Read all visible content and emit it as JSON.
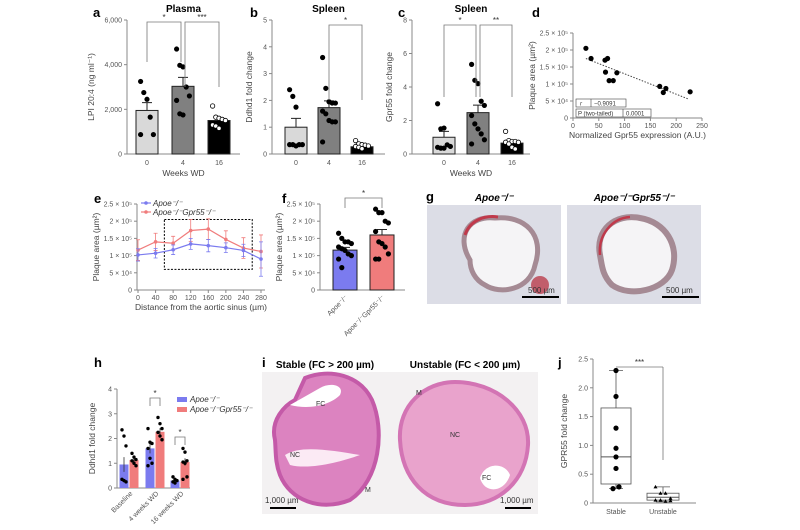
{
  "panel_labels": [
    "a",
    "b",
    "c",
    "d",
    "e",
    "f",
    "g",
    "h",
    "i",
    "j"
  ],
  "colors": {
    "apoe": "#7b7bef",
    "gpr55": "#f07c7c",
    "bar0": "#d9d9d9",
    "bar4": "#808080",
    "bar16": "#000000"
  },
  "chart_data": [
    {
      "type": "bar",
      "title": "Plasma",
      "ylabel": "LPI 20:4 (ng ml⁻¹)",
      "xlabel": "Weeks WD",
      "categories": [
        "0",
        "4",
        "16"
      ],
      "values": [
        1950,
        3030,
        1500
      ],
      "errors": [
        350,
        400,
        120
      ],
      "ylim": [
        0,
        6000
      ],
      "yticks": [
        0,
        2000,
        4000,
        6000
      ],
      "ytick_labels": [
        "0",
        "2,000",
        "4,000",
        "6,000"
      ],
      "points": [
        [
          3250,
          2750,
          2450,
          1650,
          870,
          870
        ],
        [
          4700,
          3970,
          3900,
          3000,
          2600,
          2400,
          1800,
          1750
        ],
        [
          2150,
          1650,
          1600,
          1550,
          1500,
          1300,
          1250,
          1150
        ]
      ],
      "significance": [
        {
          "from": 0,
          "to": 1,
          "label": "*"
        },
        {
          "from": 1,
          "to": 2,
          "label": "***"
        }
      ]
    },
    {
      "type": "bar",
      "title": "Spleen",
      "ylabel": "Ddhd1 fold change",
      "xlabel": "",
      "categories": [
        "0",
        "4",
        "16"
      ],
      "values": [
        1.0,
        1.73,
        0.27
      ],
      "errors": [
        0.33,
        0.25,
        0.05
      ],
      "ylim": [
        0,
        5
      ],
      "yticks": [
        0,
        1,
        2,
        3,
        4,
        5
      ],
      "ytick_labels": [
        "0",
        "1",
        "2",
        "3",
        "4",
        "5"
      ],
      "points": [
        [
          2.4,
          2.15,
          1.75,
          0.35,
          0.35,
          0.35,
          0.35,
          0.3
        ],
        [
          3.6,
          2.45,
          1.95,
          1.9,
          1.9,
          1.6,
          1.5,
          1.25,
          1.2,
          1.2,
          0.45
        ],
        [
          0.5,
          0.38,
          0.35,
          0.33,
          0.3,
          0.28,
          0.25,
          0.2
        ]
      ],
      "significance": [
        {
          "from": 1,
          "to": 2,
          "label": "*"
        }
      ]
    },
    {
      "type": "bar",
      "title": "Spleen",
      "ylabel": "Gpr55 fold change",
      "xlabel": "Weeks WD",
      "categories": [
        "0",
        "4",
        "16"
      ],
      "values": [
        1.0,
        2.47,
        0.65
      ],
      "errors": [
        0.35,
        0.45,
        0.1
      ],
      "ylim": [
        0,
        8
      ],
      "yticks": [
        0,
        2,
        4,
        6,
        8
      ],
      "ytick_labels": [
        "0",
        "2",
        "4",
        "6",
        "8"
      ],
      "points": [
        [
          3.0,
          1.5,
          1.55,
          0.55,
          0.45,
          0.4,
          0.35,
          0.35
        ],
        [
          5.35,
          4.4,
          4.2,
          3.15,
          2.9,
          2.3,
          1.8,
          1.5,
          1.2,
          0.85,
          0.6
        ],
        [
          1.35,
          0.8,
          0.75,
          0.75,
          0.7,
          0.7,
          0.6,
          0.4,
          0.3
        ]
      ],
      "significance": [
        {
          "from": 0,
          "to": 1,
          "label": "*"
        },
        {
          "from": 1,
          "to": 2,
          "label": "**"
        }
      ]
    },
    {
      "type": "scatter",
      "xlabel": "Normalized Gpr55 expression (A.U.)",
      "ylabel": "Plaque area (µm²)",
      "xlim": [
        0,
        250
      ],
      "ylim": [
        0,
        250000
      ],
      "xticks": [
        0,
        50,
        100,
        150,
        200,
        250
      ],
      "xtick_labels": [
        "0",
        "50",
        "100",
        "150",
        "200",
        "250"
      ],
      "yticks": [
        0,
        50000,
        100000,
        150000,
        200000,
        250000
      ],
      "ytick_labels": [
        "0",
        "5 × 10⁴",
        "1 × 10⁵",
        "1.5 × 10⁵",
        "2 × 10⁵",
        "2.5 × 10⁵"
      ],
      "x": [
        25,
        35,
        62,
        67,
        63,
        70,
        78,
        85,
        168,
        175,
        180,
        227
      ],
      "y": [
        205000,
        175000,
        170000,
        175000,
        135000,
        110000,
        110000,
        133000,
        93000,
        75000,
        87000,
        77000
      ],
      "trendline": [
        [
          25,
          175000
        ],
        [
          225,
          55000
        ]
      ],
      "stats": {
        "r_label": "r",
        "r_value": "−0.9091",
        "p_label": "P (two-tailed)",
        "p_value": "0.0001"
      }
    },
    {
      "type": "line",
      "xlabel": "Distance from the aortic sinus (µm)",
      "ylabel": "Plaque area (µm²)",
      "xlim": [
        0,
        280
      ],
      "ylim": [
        0,
        250000
      ],
      "xticks": [
        0,
        40,
        80,
        120,
        160,
        200,
        240,
        280
      ],
      "xtick_labels": [
        "0",
        "40",
        "80",
        "120",
        "160",
        "200",
        "240",
        "280"
      ],
      "yticks": [
        0,
        50000,
        100000,
        150000,
        200000,
        250000
      ],
      "ytick_labels": [
        "0",
        "5 × 10⁴",
        "1 × 10⁵",
        "1.5 × 10⁵",
        "2 × 10⁵",
        "2.5 × 10⁵"
      ],
      "x": [
        0,
        40,
        80,
        120,
        160,
        200,
        240,
        280
      ],
      "series": [
        {
          "name": "Apoe⁻/⁻",
          "values": [
            102000,
            107000,
            117000,
            134000,
            129000,
            123000,
            115000,
            90000
          ],
          "errors": [
            18000,
            14000,
            14000,
            16000,
            18000,
            14000,
            18000,
            50000
          ]
        },
        {
          "name": "Apoe⁻/⁻Gpr55⁻/⁻",
          "values": [
            116000,
            140000,
            136000,
            173000,
            177000,
            147000,
            122000,
            112000
          ],
          "errors": [
            30000,
            25000,
            20000,
            32000,
            30000,
            25000,
            30000,
            48000
          ]
        }
      ],
      "legend": "top-left",
      "highlight_region": {
        "x": [
          60,
          260
        ],
        "y": [
          60000,
          205000
        ]
      }
    },
    {
      "type": "bar",
      "ylabel": "Plaque area (µm²)",
      "categories": [
        "Apoe⁻/⁻",
        "Apoe⁻/⁻Gpr55⁻/⁻"
      ],
      "values": [
        116000,
        160000
      ],
      "errors": [
        8000,
        16000
      ],
      "ylim": [
        0,
        250000
      ],
      "yticks": [
        0,
        50000,
        100000,
        150000,
        200000,
        250000
      ],
      "ytick_labels": [
        "0",
        "5 × 10⁴",
        "1 × 10⁵",
        "1.5 × 10⁵",
        "2 × 10⁵",
        "2.5 × 10⁵"
      ],
      "points": [
        [
          165000,
          150000,
          140000,
          140000,
          135000,
          125000,
          120000,
          115000,
          105000,
          100000,
          90000,
          65000
        ],
        [
          235000,
          225000,
          225000,
          200000,
          195000,
          170000,
          140000,
          135000,
          125000,
          105000,
          90000,
          90000
        ]
      ],
      "significance": [
        {
          "from": 0,
          "to": 1,
          "label": "*"
        }
      ]
    },
    {
      "type": "bar",
      "ylabel": "Ddhd1 fold change",
      "categories": [
        "Baseline",
        "4 weeks WD",
        "16 weeks WD"
      ],
      "ylim": [
        0,
        4
      ],
      "yticks": [
        0,
        1,
        2,
        3,
        4
      ],
      "ytick_labels": [
        "0",
        "1",
        "2",
        "3",
        "4"
      ],
      "series": [
        {
          "name": "Apoe⁻/⁻",
          "values": [
            0.95,
            1.6,
            0.3
          ],
          "errors": [
            0.3,
            0.2,
            0.05
          ],
          "points": [
            [
              2.35,
              2.1,
              1.7,
              0.35,
              0.3,
              0.25
            ],
            [
              2.4,
              1.85,
              1.8,
              1.6,
              1.2,
              1.0,
              0.9
            ],
            [
              0.45,
              0.35,
              0.3,
              0.25,
              0.2
            ]
          ]
        },
        {
          "name": "Apoe⁻/⁻Gpr55⁻/⁻",
          "values": [
            1.13,
            2.27,
            1.05
          ],
          "errors": [
            0.08,
            0.15,
            0.15
          ],
          "points": [
            [
              1.4,
              1.25,
              1.15,
              1.1,
              1.0,
              0.9
            ],
            [
              2.85,
              2.6,
              2.4,
              2.25,
              2.1,
              1.95
            ],
            [
              1.6,
              1.45,
              1.1,
              1.05,
              1.0,
              0.45,
              0.35
            ]
          ]
        }
      ],
      "legend": "top-right",
      "significance": [
        {
          "group": 1,
          "label": "*"
        },
        {
          "group": 2,
          "label": "*"
        }
      ]
    },
    {
      "type": "box",
      "ylabel": "GPR55 fold change",
      "categories": [
        "Stable",
        "Unstable"
      ],
      "ylim": [
        0,
        2.5
      ],
      "yticks": [
        0,
        0.5,
        1.0,
        1.5,
        2.0,
        2.5
      ],
      "ytick_labels": [
        "0",
        "0.5",
        "1.0",
        "1.5",
        "2.0",
        "2.5"
      ],
      "boxes": [
        {
          "min": 0.25,
          "q1": 0.33,
          "median": 0.8,
          "q3": 1.65,
          "max": 2.3
        },
        {
          "min": 0.02,
          "q1": 0.05,
          "median": 0.1,
          "q3": 0.17,
          "max": 0.28
        }
      ],
      "points": [
        [
          2.3,
          1.85,
          1.3,
          0.95,
          0.8,
          0.6,
          0.25,
          0.28
        ],
        [
          0.28,
          0.17,
          0.17,
          0.08,
          0.05,
          0.05,
          0.03,
          0.04
        ]
      ],
      "significance": [
        {
          "from": 0,
          "to": 1,
          "label": "***"
        }
      ]
    }
  ],
  "panel_g": {
    "titles": [
      "Apoe⁻/⁻",
      "Apoe⁻/⁻Gpr55⁻/⁻"
    ],
    "scale_bar": "500 µm"
  },
  "panel_i": {
    "titles": [
      "Stable (FC > 200 µm)",
      "Unstable (FC < 200 µm)"
    ],
    "scale_bar": "1,000 µm",
    "annotations": {
      "fc": "FC",
      "nc": "NC",
      "m": "M"
    }
  }
}
